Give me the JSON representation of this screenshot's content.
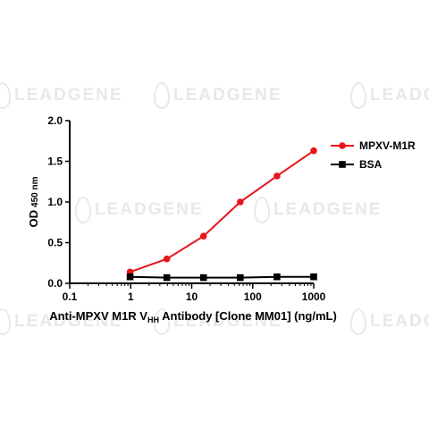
{
  "watermark": {
    "text": "LEADGENE"
  },
  "chart_data": {
    "type": "line",
    "title": "",
    "ylabel": "OD",
    "ylabel_sub": "450 nm",
    "xlabel": {
      "pre": "Anti-MPXV M1R V",
      "sub": "HH",
      "post": " Antibody [Clone MM01] (ng/mL)"
    },
    "xscale": "log",
    "xlim": [
      0.1,
      1000
    ],
    "ylim": [
      0,
      2.0
    ],
    "xticks": [
      0.1,
      1,
      10,
      100,
      1000
    ],
    "xtick_labels": [
      "0.1",
      "1",
      "10",
      "100",
      "1000"
    ],
    "yticks": [
      0,
      0.5,
      1.0,
      1.5,
      2.0
    ],
    "ytick_labels": [
      "0.0",
      "0.5",
      "1.0",
      "1.5",
      "2.0"
    ],
    "grid": false,
    "legend_position": "top-right",
    "series": [
      {
        "name": "MPXV-M1R",
        "color": "#e8141b",
        "marker": "circle",
        "x": [
          0.977,
          3.906,
          15.625,
          62.5,
          250,
          1000
        ],
        "y": [
          0.14,
          0.3,
          0.58,
          1.0,
          1.32,
          1.63
        ]
      },
      {
        "name": "BSA",
        "color": "#000000",
        "marker": "square",
        "x": [
          0.977,
          3.906,
          15.625,
          62.5,
          250,
          1000
        ],
        "y": [
          0.08,
          0.07,
          0.07,
          0.07,
          0.08,
          0.08
        ]
      }
    ]
  }
}
